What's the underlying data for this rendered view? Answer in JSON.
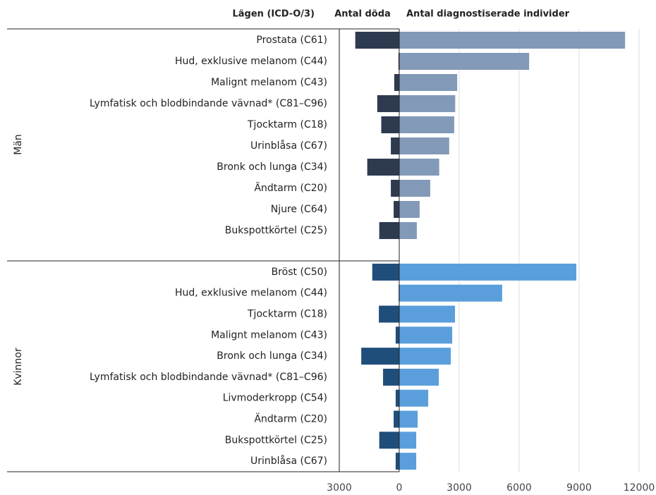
{
  "chart_data": {
    "type": "bar",
    "category_label": "Lägen (ICD-O/3)",
    "series_names": [
      "Antal döda",
      "Antal diagnostiserade individer"
    ],
    "xlim": [
      -3000,
      12000
    ],
    "xticks": [
      {
        "value": -3000,
        "label": "3000"
      },
      0,
      3000,
      6000,
      9000,
      12000
    ],
    "grid": true,
    "groups": [
      {
        "name": "Män",
        "categories": [
          "Prostata (C61)",
          "Hud, exklusive melanom (C44)",
          "Malignt melanom (C43)",
          "Lymfatisk och blodbindande vävnad* (C81–C96)",
          "Tjocktarm (C18)",
          "Urinblåsa (C67)",
          "Bronk och lunga (C34)",
          "Ändtarm (C20)",
          "Njure (C64)",
          "Bukspottkörtel (C25)"
        ],
        "series": [
          {
            "color": "#2e3a50",
            "values": [
              -2200,
              -40,
              -250,
              -1100,
              -900,
              -420,
              -1600,
              -420,
              -280,
              -1000
            ]
          },
          {
            "color": "#8399b8",
            "values": [
              11300,
              6500,
              2900,
              2800,
              2750,
              2500,
              2000,
              1550,
              1020,
              880
            ]
          }
        ]
      },
      {
        "name": "Kvinnor",
        "categories": [
          "Bröst (C50)",
          "Hud, exklusive melanom (C44)",
          "Tjocktarm (C18)",
          "Malignt melanom (C43)",
          "Bronk och lunga (C34)",
          "Lymfatisk och blodbindande vävnad* (C81–C96)",
          "Livmoderkropp (C54)",
          "Ändtarm (C20)",
          "Bukspottkörtel (C25)",
          "Urinblåsa (C67)"
        ],
        "series": [
          {
            "color": "#1f4e7a",
            "values": [
              -1350,
              -30,
              -1020,
              -180,
              -1900,
              -810,
              -180,
              -280,
              -1000,
              -180
            ]
          },
          {
            "color": "#5a9fdc",
            "values": [
              8860,
              5150,
              2790,
              2650,
              2580,
              1980,
              1450,
              920,
              850,
              850
            ]
          }
        ]
      }
    ]
  }
}
